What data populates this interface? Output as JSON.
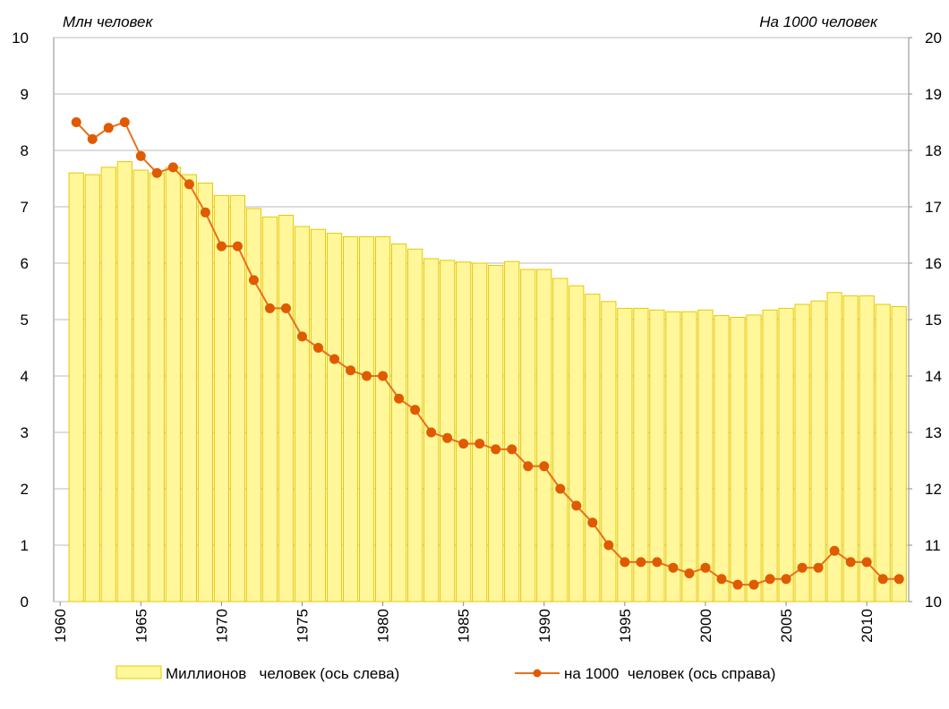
{
  "chart_data": {
    "type": "bar_line",
    "y_label": "Млн  человек",
    "y2_label": "На 1000 человек",
    "x": [
      1961,
      1962,
      1963,
      1964,
      1965,
      1966,
      1967,
      1968,
      1969,
      1970,
      1971,
      1972,
      1973,
      1974,
      1975,
      1976,
      1977,
      1978,
      1979,
      1980,
      1981,
      1982,
      1983,
      1984,
      1985,
      1986,
      1987,
      1988,
      1989,
      1990,
      1991,
      1992,
      1993,
      1994,
      1995,
      1996,
      1997,
      1998,
      1999,
      2000,
      2001,
      2002,
      2003,
      2004,
      2005,
      2006,
      2007,
      2008,
      2009,
      2010,
      2011,
      2012
    ],
    "series": [
      {
        "name": "Миллионов   человек (ось слева)",
        "kind": "bar",
        "color": "#fff799",
        "edge": "#e8c800",
        "values": [
          7.6,
          7.57,
          7.7,
          7.8,
          7.65,
          7.6,
          7.7,
          7.57,
          7.42,
          7.2,
          7.2,
          6.97,
          6.82,
          6.85,
          6.65,
          6.6,
          6.53,
          6.47,
          6.47,
          6.47,
          6.34,
          6.25,
          6.08,
          6.05,
          6.02,
          6.0,
          5.96,
          6.03,
          5.89,
          5.89,
          5.73,
          5.6,
          5.45,
          5.32,
          5.2,
          5.2,
          5.17,
          5.14,
          5.14,
          5.17,
          5.07,
          5.04,
          5.08,
          5.17,
          5.2,
          5.27,
          5.33,
          5.48,
          5.42,
          5.42,
          5.27,
          5.23
        ]
      },
      {
        "name": "на 1000  человек (ось справа)",
        "kind": "line",
        "axis": "y2",
        "color": "#e8701e",
        "marker_color": "#e05a00",
        "values": [
          18.5,
          18.2,
          18.4,
          18.5,
          17.9,
          17.6,
          17.7,
          17.4,
          16.9,
          16.3,
          16.3,
          15.7,
          15.2,
          15.2,
          14.7,
          14.5,
          14.3,
          14.1,
          14.0,
          14.0,
          13.6,
          13.4,
          13.0,
          12.9,
          12.8,
          12.8,
          12.7,
          12.7,
          12.4,
          12.4,
          12.0,
          11.7,
          11.4,
          11.0,
          10.7,
          10.7,
          10.7,
          10.6,
          10.5,
          10.6,
          10.4,
          10.3,
          10.3,
          10.4,
          10.4,
          10.6,
          10.6,
          10.9,
          10.7,
          10.7,
          10.4,
          10.4
        ]
      }
    ],
    "xlim": [
      1959.6,
      2012.6
    ],
    "xticks": [
      1960,
      1965,
      1970,
      1975,
      1980,
      1985,
      1990,
      1995,
      2000,
      2005,
      2010
    ],
    "ylim": [
      0,
      10
    ],
    "yticks": [
      0,
      1,
      2,
      3,
      4,
      5,
      6,
      7,
      8,
      9,
      10
    ],
    "y2lim": [
      10,
      20
    ],
    "y2ticks": [
      10,
      11,
      12,
      13,
      14,
      15,
      16,
      17,
      18,
      19,
      20
    ],
    "grid": true,
    "legend": "bottom"
  }
}
